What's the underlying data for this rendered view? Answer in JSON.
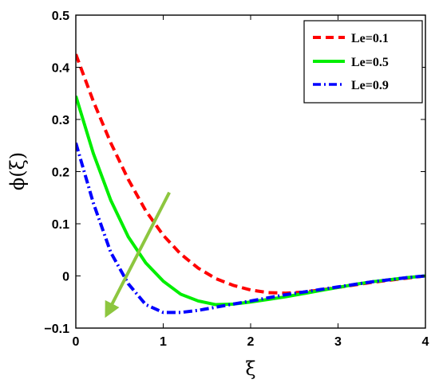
{
  "chart_data": {
    "type": "line",
    "xlabel": "ξ",
    "ylabel": "ϕ(ξ)",
    "xlim": [
      0,
      4
    ],
    "ylim": [
      -0.1,
      0.5
    ],
    "xticks": [
      "0",
      "1",
      "2",
      "3",
      "4"
    ],
    "yticks": [
      "−0.1",
      "0",
      "0.1",
      "0.2",
      "0.3",
      "0.4",
      "0.5"
    ],
    "grid": false,
    "legend_position": "top-right",
    "series": [
      {
        "name": "Le=0.1",
        "color": "#ff0000",
        "dash": "dashed",
        "x": [
          0,
          0.2,
          0.4,
          0.6,
          0.8,
          1.0,
          1.2,
          1.4,
          1.6,
          1.8,
          2.0,
          2.2,
          2.4,
          2.6,
          2.8,
          3.0,
          3.2,
          3.4,
          3.6,
          3.8,
          4.0
        ],
        "y": [
          0.425,
          0.335,
          0.255,
          0.185,
          0.125,
          0.078,
          0.042,
          0.015,
          -0.005,
          -0.018,
          -0.027,
          -0.032,
          -0.033,
          -0.031,
          -0.027,
          -0.022,
          -0.017,
          -0.012,
          -0.008,
          -0.004,
          0.0
        ]
      },
      {
        "name": "Le=0.5",
        "color": "#00ee00",
        "dash": "solid",
        "x": [
          0,
          0.2,
          0.4,
          0.6,
          0.8,
          1.0,
          1.2,
          1.4,
          1.6,
          1.8,
          2.0,
          2.2,
          2.4,
          2.6,
          2.8,
          3.0,
          3.2,
          3.4,
          3.6,
          3.8,
          4.0
        ],
        "y": [
          0.345,
          0.235,
          0.145,
          0.075,
          0.025,
          -0.01,
          -0.035,
          -0.048,
          -0.055,
          -0.054,
          -0.05,
          -0.045,
          -0.04,
          -0.034,
          -0.028,
          -0.022,
          -0.016,
          -0.011,
          -0.007,
          -0.003,
          0.0
        ]
      },
      {
        "name": "Le=0.9",
        "color": "#0000ff",
        "dash": "dashdot",
        "x": [
          0,
          0.2,
          0.4,
          0.6,
          0.8,
          1.0,
          1.2,
          1.4,
          1.6,
          1.8,
          2.0,
          2.2,
          2.4,
          2.6,
          2.8,
          3.0,
          3.2,
          3.4,
          3.6,
          3.8,
          4.0
        ],
        "y": [
          0.255,
          0.14,
          0.045,
          -0.015,
          -0.055,
          -0.07,
          -0.07,
          -0.066,
          -0.06,
          -0.054,
          -0.048,
          -0.042,
          -0.036,
          -0.031,
          -0.026,
          -0.021,
          -0.016,
          -0.011,
          -0.007,
          -0.003,
          0.0
        ]
      }
    ],
    "annotations": [
      {
        "type": "arrow",
        "color": "#8dc63f",
        "from": [
          1.07,
          0.16
        ],
        "to": [
          0.35,
          -0.075
        ]
      }
    ]
  }
}
